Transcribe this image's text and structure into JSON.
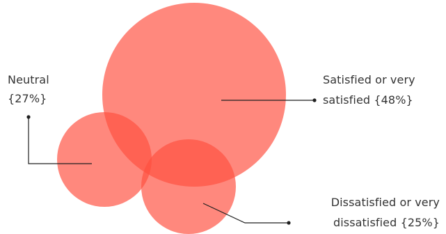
{
  "chart_data": {
    "type": "bubble",
    "title": "",
    "series": [
      {
        "key": "satisfied",
        "label_lines": [
          "Satisfied or very",
          "satisfied {48%}"
        ],
        "value": 48
      },
      {
        "key": "neutral",
        "label_lines": [
          "Neutral",
          "{27%}"
        ],
        "value": 27
      },
      {
        "key": "dissatisfied",
        "label_lines": [
          "Dissatisfied or very",
          "dissatisfied {25%}"
        ],
        "value": 25
      }
    ],
    "colors": {
      "bubble": "#ff4f3f",
      "bubble_opacity": 0.68,
      "leader": "#1f1f1f",
      "text": "#333333"
    }
  }
}
